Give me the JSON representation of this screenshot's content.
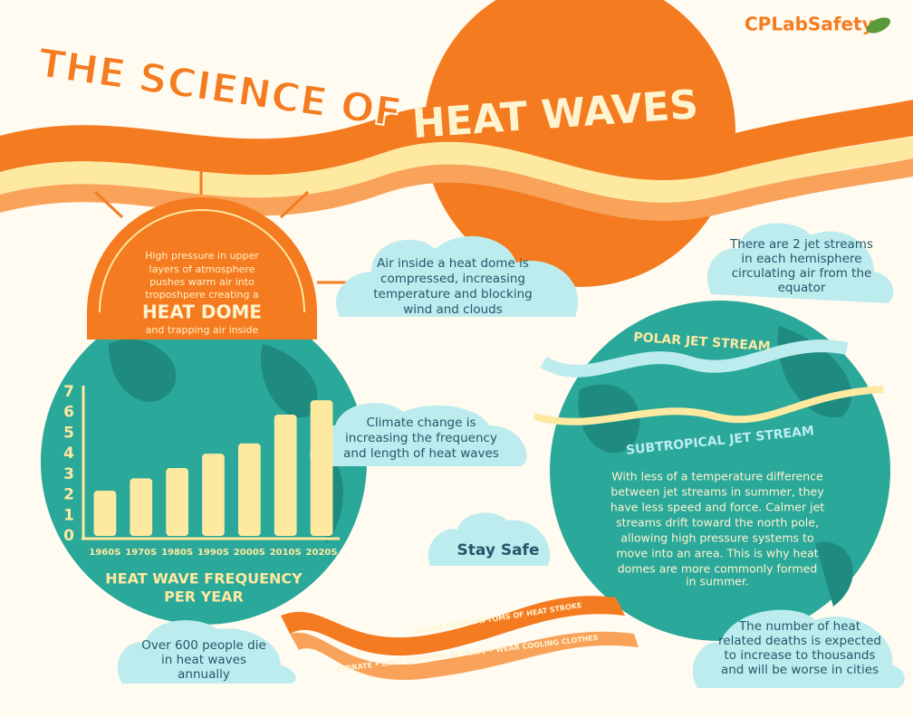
{
  "logo": "CPLabSafety",
  "title": {
    "line1": "THE SCIENCE OF",
    "line2": "HEAT WAVES"
  },
  "dome": {
    "lines": [
      "High pressure in upper",
      "layers of atmosphere",
      "pushes warm air into",
      "troposhpere creating a"
    ],
    "heading": "HEAT DOME",
    "after": "and trapping air inside"
  },
  "clouds": [
    [
      "Air inside a heat dome is",
      "compressed, increasing",
      "temperature and blocking",
      "wind and clouds"
    ],
    [
      "There are 2 jet streams",
      "in each hemisphere",
      "circulating air from the",
      "equator"
    ],
    [
      "Climate change is",
      "increasing the frequency",
      "and length of heat waves"
    ],
    [
      "Over 600 people die",
      "in heat waves",
      "annually"
    ],
    [
      "The number of heat",
      "related deaths is expected",
      "to increase to thousands",
      "and will be worse in cities"
    ]
  ],
  "stay_safe": "Stay Safe",
  "jet": {
    "polar": "POLAR JET STREAM",
    "subtropical": "SUBTROPICAL JET STREAM",
    "text": [
      "With less of a temperature difference",
      "between jet streams in summer, they",
      "have less speed and force. Calmer jet",
      "streams drift toward the north pole,",
      "allowing high pressure systems to",
      "move into an area. This is why heat",
      "domes are more commonly formed",
      "in summer."
    ]
  },
  "ribbon": [
    "WATCH FOR SYMPTOMS OF HEAT STROKE",
    "HYDRATE • LIMIT OUTDOOR ACTIVITY • WEAR COOLING CLOTHES"
  ],
  "chart_data": {
    "type": "bar",
    "title": [
      "HEAT WAVE FREQUENCY",
      "PER YEAR"
    ],
    "categories": [
      "1960S",
      "1970S",
      "1980S",
      "1990S",
      "2000S",
      "2010S",
      "2020S"
    ],
    "values": [
      2.2,
      2.8,
      3.3,
      4.0,
      4.5,
      5.9,
      6.6
    ],
    "color": "#fde9a0",
    "ylim": [
      0,
      7
    ],
    "yticks": [
      0,
      1,
      2,
      3,
      4,
      5,
      6,
      7
    ]
  }
}
